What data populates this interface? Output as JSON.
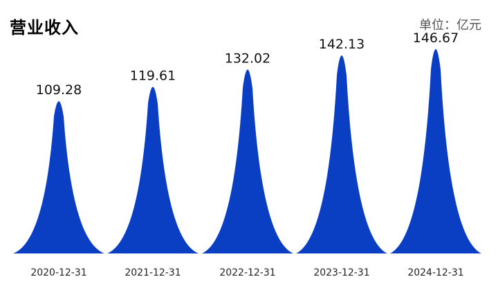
{
  "colors": {
    "bar": "#0a3fc4",
    "background": "#ffffff"
  },
  "header": {
    "title": "营业收入",
    "unit": "单位：亿元"
  },
  "chart_data": {
    "type": "bar",
    "title": "营业收入",
    "unit": "单位：亿元",
    "categories": [
      "2020-12-31",
      "2021-12-31",
      "2022-12-31",
      "2023-12-31",
      "2024-12-31"
    ],
    "values": [
      109.28,
      119.61,
      132.02,
      142.13,
      146.67
    ],
    "value_labels": [
      "109.28",
      "119.61",
      "132.02",
      "142.13",
      "146.67"
    ],
    "xlabel": "",
    "ylabel": "",
    "ylim": [
      0,
      150
    ],
    "grid": false,
    "legend": "none",
    "bar_style": "peak"
  }
}
